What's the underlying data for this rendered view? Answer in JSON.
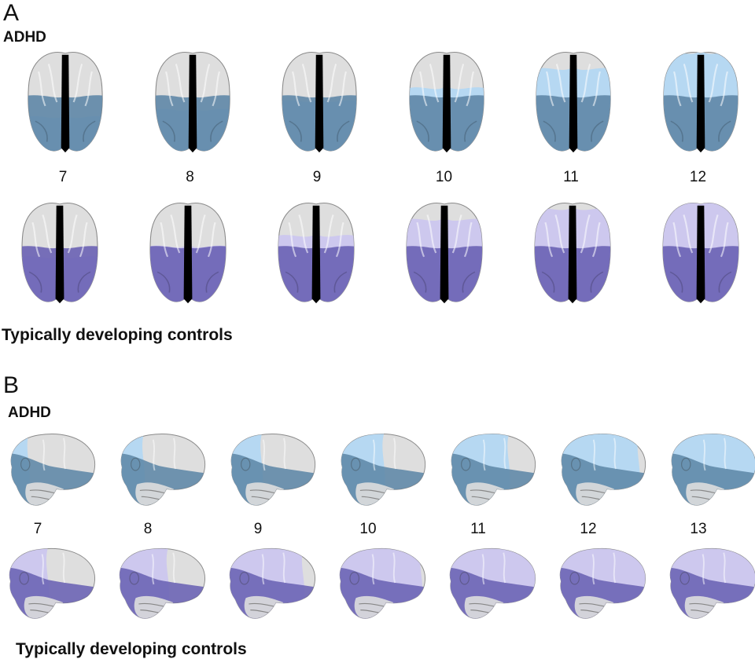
{
  "panels": [
    {
      "letter": "A",
      "view": "axial",
      "top_group": "ADHD",
      "bottom_group": "Typically developing controls",
      "ages": [
        "7",
        "8",
        "9",
        "10",
        "11",
        "12"
      ],
      "top_maturation": [
        0.35,
        0.42,
        0.5,
        0.62,
        0.8,
        0.95
      ],
      "bottom_maturation": [
        0.45,
        0.55,
        0.65,
        0.8,
        0.9,
        0.97
      ]
    },
    {
      "letter": "B",
      "view": "lateral",
      "top_group": "ADHD",
      "bottom_group": "Typically developing controls",
      "ages": [
        "7",
        "8",
        "9",
        "10",
        "11",
        "12",
        "13"
      ],
      "top_maturation": [
        0.25,
        0.3,
        0.38,
        0.5,
        0.65,
        0.85,
        0.97
      ],
      "bottom_maturation": [
        0.45,
        0.55,
        0.8,
        0.88,
        0.92,
        0.96,
        0.98
      ]
    }
  ],
  "colors": {
    "adhd_light": "#b3d7f2",
    "adhd_dark": "#5f87a7",
    "control_light": "#cbc6ee",
    "control_dark": "#6a62b4",
    "cortex": "#dedede",
    "cortex_edge": "#8a8a8a"
  },
  "icons": {
    "brain_axial": "brain-axial-icon",
    "brain_lateral": "brain-lateral-icon"
  }
}
